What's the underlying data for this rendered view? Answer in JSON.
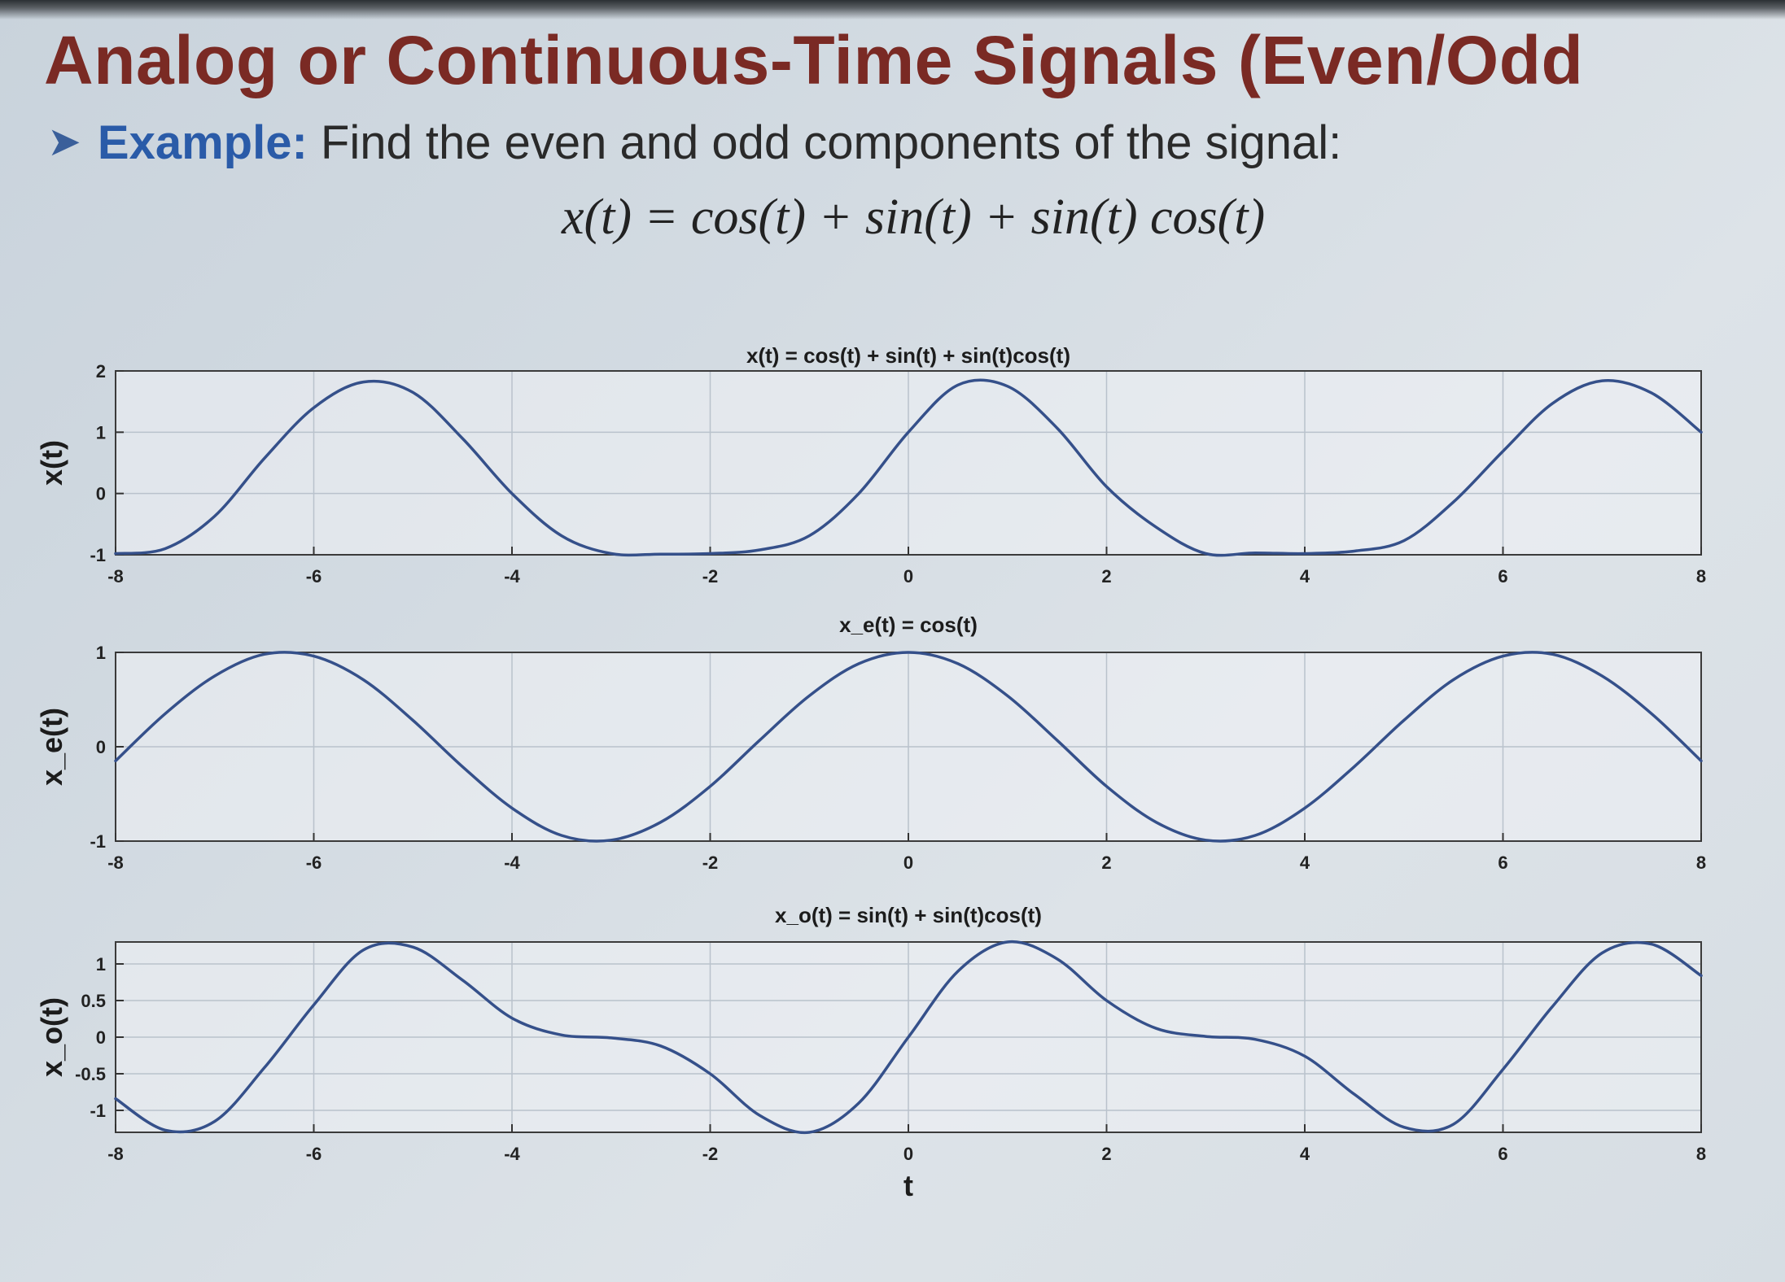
{
  "slide": {
    "title": "Analog or Continuous-Time Signals (Even/Odd",
    "example_label": "Example:",
    "example_text": " Find the even and odd components of the signal:",
    "equation": "x(t) = cos(t) + sin(t) + sin(t) cos(t)"
  },
  "colors": {
    "title": "#7a2a24",
    "example_label": "#2a5ba8",
    "curve": "#35508a",
    "grid": "#b9c2cc"
  },
  "icons": {
    "bullet": "arrowhead-bullet-icon"
  },
  "chart_data": [
    {
      "type": "line",
      "title": "x(t) = cos(t) + sin(t) + sin(t)cos(t)",
      "ylabel": "x(t)",
      "xlabel": "",
      "xlim": [
        -8,
        8
      ],
      "ylim": [
        -1,
        2
      ],
      "xticks": [
        "-8",
        "-6",
        "-4",
        "-2",
        "0",
        "2",
        "4",
        "6",
        "8"
      ],
      "yticks": [
        "-1",
        "0",
        "1",
        "2"
      ],
      "grid": true,
      "x": [
        -8,
        -7.5,
        -7,
        -6.5,
        -6,
        -5.5,
        -5,
        -4.5,
        -4,
        -3.5,
        -3,
        -2.5,
        -2,
        -1.5,
        -1,
        -0.5,
        0,
        0.5,
        1,
        1.5,
        2,
        2.5,
        3,
        3.5,
        4,
        4.5,
        5,
        5.5,
        6,
        6.5,
        7,
        7.5,
        8
      ],
      "values": [
        -0.98,
        -0.9,
        -0.37,
        0.57,
        1.4,
        1.82,
        1.65,
        0.9,
        -0.0,
        -0.69,
        -0.98,
        -0.99,
        -0.98,
        -0.92,
        -0.69,
        0.0,
        1.0,
        1.77,
        1.75,
        1.07,
        0.11,
        -0.55,
        -0.98,
        -0.97,
        -0.98,
        -0.94,
        -0.77,
        -0.14,
        0.69,
        1.47,
        1.84,
        1.64,
        1.0
      ]
    },
    {
      "type": "line",
      "title": "x_e(t) = cos(t)",
      "ylabel": "x_e(t)",
      "xlabel": "",
      "xlim": [
        -8,
        8
      ],
      "ylim": [
        -1,
        1
      ],
      "xticks": [
        "-8",
        "-6",
        "-4",
        "-2",
        "0",
        "2",
        "4",
        "6",
        "8"
      ],
      "yticks": [
        "-1",
        "0",
        "1"
      ],
      "grid": true,
      "x": [
        -8,
        -7.5,
        -7,
        -6.5,
        -6,
        -5.5,
        -5,
        -4.5,
        -4,
        -3.5,
        -3,
        -2.5,
        -2,
        -1.5,
        -1,
        -0.5,
        0,
        0.5,
        1,
        1.5,
        2,
        2.5,
        3,
        3.5,
        4,
        4.5,
        5,
        5.5,
        6,
        6.5,
        7,
        7.5,
        8
      ],
      "values": [
        -0.15,
        0.35,
        0.75,
        0.98,
        0.96,
        0.71,
        0.28,
        -0.21,
        -0.65,
        -0.94,
        -0.99,
        -0.8,
        -0.42,
        0.07,
        0.54,
        0.88,
        1.0,
        0.88,
        0.54,
        0.07,
        -0.42,
        -0.8,
        -0.99,
        -0.94,
        -0.65,
        -0.21,
        0.28,
        0.71,
        0.96,
        0.98,
        0.75,
        0.35,
        -0.15
      ]
    },
    {
      "type": "line",
      "title": "x_o(t) = sin(t) + sin(t)cos(t)",
      "ylabel": "x_o(t)",
      "xlabel": "t",
      "xlim": [
        -8,
        8
      ],
      "ylim": [
        -1.3,
        1.3
      ],
      "xticks": [
        "-8",
        "-6",
        "-4",
        "-2",
        "0",
        "2",
        "4",
        "6",
        "8"
      ],
      "yticks": [
        "-1",
        "-0.5",
        "0",
        "0.5",
        "1"
      ],
      "grid": true,
      "x": [
        -8,
        -7.5,
        -7,
        -6.5,
        -6,
        -5.5,
        -5,
        -4.5,
        -4,
        -3.5,
        -3,
        -2.5,
        -2,
        -1.5,
        -1,
        -0.5,
        0,
        0.5,
        1,
        1.5,
        2,
        2.5,
        3,
        3.5,
        4,
        4.5,
        5,
        5.5,
        6,
        6.5,
        7,
        7.5,
        8
      ],
      "values": [
        -0.84,
        -1.27,
        -1.15,
        -0.42,
        0.44,
        1.19,
        1.23,
        0.78,
        0.26,
        0.03,
        -0.01,
        -0.12,
        -0.5,
        -1.07,
        -1.3,
        -0.9,
        0.0,
        0.9,
        1.3,
        1.07,
        0.5,
        0.12,
        0.01,
        -0.03,
        -0.26,
        -0.78,
        -1.23,
        -1.19,
        -0.44,
        0.42,
        1.15,
        1.27,
        0.84
      ]
    }
  ]
}
